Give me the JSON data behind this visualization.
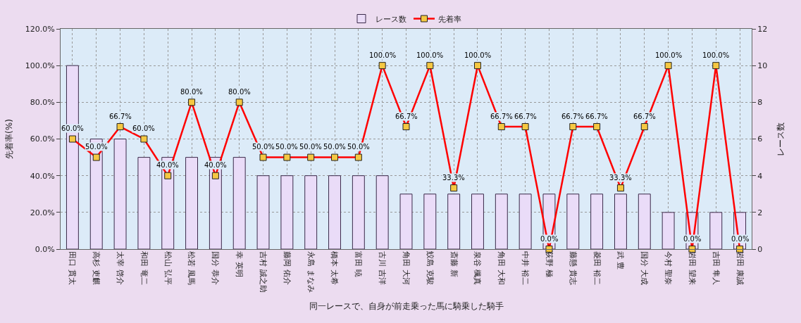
{
  "chart_data": {
    "type": "bar",
    "xlabel": "同一レースで、自身が前走乗った馬に騎乗した騎手",
    "ylabel": "先着率(%)",
    "y2label": "レース数",
    "categories": [
      "田口 貫太",
      "高杉 吏麒",
      "太宰 啓介",
      "和田 竜二",
      "松山 弘平",
      "松若 風馬",
      "国分 恭介",
      "幸 英明",
      "吉村 誠之助",
      "藤岡 佑介",
      "永島 まなみ",
      "橋本 太希",
      "富田 暁",
      "古川 吉洋",
      "角田 大河",
      "鮫島 克駿",
      "斎藤 新",
      "泉谷 楓真",
      "角田 大和",
      "中井 裕二",
      "荻野 極",
      "藤懸 貴志",
      "菱田 裕二",
      "武 豊",
      "国分 大成",
      "今村 聖奈",
      "岩田 望来",
      "吉田 隼人",
      "岩田 康誠"
    ],
    "series": [
      {
        "name": "レース数",
        "axis": "y2",
        "color": "#eadcf8",
        "values": [
          10,
          6,
          6,
          5,
          5,
          5,
          5,
          5,
          4,
          4,
          4,
          4,
          4,
          4,
          3,
          3,
          3,
          3,
          3,
          3,
          3,
          3,
          3,
          3,
          3,
          2,
          2,
          2,
          2
        ]
      },
      {
        "name": "先着率",
        "type": "line",
        "axis": "y",
        "color": "#ff0000",
        "marker": "square",
        "line_style": "solid",
        "value_labels": [
          "60.0%",
          "50.0%",
          "66.7%",
          "60.0%",
          "40.0%",
          "80.0%",
          "40.0%",
          "80.0%",
          "50.0%",
          "50.0%",
          "50.0%",
          "50.0%",
          "50.0%",
          "100.0%",
          "66.7%",
          "100.0%",
          "33.3%",
          "100.0%",
          "66.7%",
          "66.7%",
          "0.0%",
          "66.7%",
          "66.7%",
          "33.3%",
          "66.7%",
          "100.0%",
          "0.0%",
          "100.0%",
          "0.0%"
        ],
        "values": [
          60.0,
          50.0,
          66.7,
          60.0,
          40.0,
          80.0,
          40.0,
          80.0,
          50.0,
          50.0,
          50.0,
          50.0,
          50.0,
          100.0,
          66.7,
          100.0,
          33.3,
          100.0,
          66.7,
          66.7,
          0.0,
          66.7,
          66.7,
          33.3,
          66.7,
          100.0,
          0.0,
          100.0,
          0.0
        ]
      }
    ],
    "ylim": [
      0,
      120
    ],
    "yticks": [
      {
        "value": 0,
        "label": "0.0%"
      },
      {
        "value": 20,
        "label": "20.0%"
      },
      {
        "value": 40,
        "label": "40.0%"
      },
      {
        "value": 60,
        "label": "60.0%"
      },
      {
        "value": 80,
        "label": "80.0%"
      },
      {
        "value": 100,
        "label": "100.0%"
      },
      {
        "value": 120,
        "label": "120.0%"
      }
    ],
    "y2lim": [
      0,
      12
    ],
    "y2ticks": [
      0,
      2,
      4,
      6,
      8,
      10,
      12
    ],
    "grid": true,
    "legend": "top"
  }
}
